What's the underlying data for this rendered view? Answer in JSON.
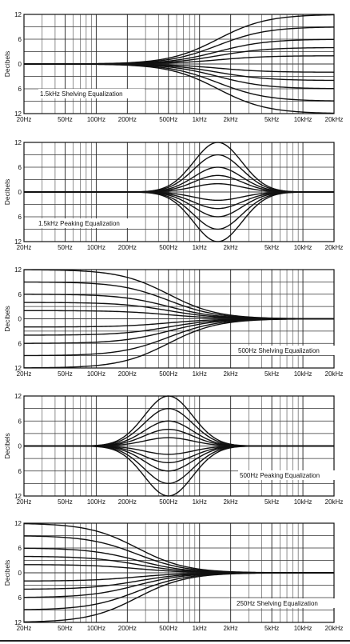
{
  "chart_data": [
    {
      "type": "line",
      "title": "1.5kHz Shelving Equalization",
      "ylabel": "Decibels",
      "ylim": [
        -12,
        12
      ],
      "yticks": [
        {
          "v": 12,
          "label": "12"
        },
        {
          "v": 6,
          "label": "6"
        },
        {
          "v": 0,
          "label": "0"
        },
        {
          "v": -6,
          "label": "6"
        },
        {
          "v": -12,
          "label": "12"
        }
      ],
      "xscale": "log",
      "xticks": [
        {
          "f": 20,
          "label": "20Hz"
        },
        {
          "f": 50,
          "label": "50Hz"
        },
        {
          "f": 100,
          "label": "100Hz"
        },
        {
          "f": 200,
          "label": "200Hz"
        },
        {
          "f": 500,
          "label": "500Hz"
        },
        {
          "f": 1000,
          "label": "1kHz"
        },
        {
          "f": 2000,
          "label": "2kHz"
        },
        {
          "f": 5000,
          "label": "5kHz"
        },
        {
          "f": 10000,
          "label": "10kHz"
        },
        {
          "f": 20000,
          "label": "20kHz"
        }
      ],
      "curve_kind": "shelf-high",
      "center_hz": 1500,
      "series_gains_db": [
        12,
        9,
        6,
        4,
        2,
        -2,
        -4,
        -6,
        -9,
        -12
      ]
    },
    {
      "type": "line",
      "title": "1.5kHz Peaking Equalization",
      "ylabel": "Decibels",
      "ylim": [
        -12,
        12
      ],
      "yticks": [
        {
          "v": 12,
          "label": "12"
        },
        {
          "v": 6,
          "label": "6"
        },
        {
          "v": 0,
          "label": "0"
        },
        {
          "v": -6,
          "label": "6"
        },
        {
          "v": -12,
          "label": "12"
        }
      ],
      "xscale": "log",
      "xticks": [
        {
          "f": 20,
          "label": "20Hz"
        },
        {
          "f": 50,
          "label": "50Hz"
        },
        {
          "f": 100,
          "label": "100Hz"
        },
        {
          "f": 200,
          "label": "200Hz"
        },
        {
          "f": 500,
          "label": "500Hz"
        },
        {
          "f": 1000,
          "label": "1kHz"
        },
        {
          "f": 2000,
          "label": "2kHz"
        },
        {
          "f": 5000,
          "label": "5kHz"
        },
        {
          "f": 10000,
          "label": "10kHz"
        },
        {
          "f": 20000,
          "label": "20kHz"
        }
      ],
      "curve_kind": "peak",
      "center_hz": 1500,
      "series_gains_db": [
        12,
        9,
        6,
        4,
        2,
        -2,
        -4,
        -6,
        -9,
        -12
      ]
    },
    {
      "type": "line",
      "title": "500Hz Shelving Equalization",
      "ylabel": "Decibels",
      "ylim": [
        -12,
        12
      ],
      "yticks": [
        {
          "v": 12,
          "label": "12"
        },
        {
          "v": 6,
          "label": "6"
        },
        {
          "v": 0,
          "label": "0"
        },
        {
          "v": -6,
          "label": "6"
        },
        {
          "v": -12,
          "label": "12"
        }
      ],
      "xscale": "log",
      "xticks": [
        {
          "f": 20,
          "label": "20Hz"
        },
        {
          "f": 50,
          "label": "50Hz"
        },
        {
          "f": 100,
          "label": "100Hz"
        },
        {
          "f": 200,
          "label": "200Hz"
        },
        {
          "f": 500,
          "label": "500Hz"
        },
        {
          "f": 1000,
          "label": "1kHz"
        },
        {
          "f": 2000,
          "label": "2kHz"
        },
        {
          "f": 5000,
          "label": "5kHz"
        },
        {
          "f": 10000,
          "label": "10kHz"
        },
        {
          "f": 20000,
          "label": "20kHz"
        }
      ],
      "curve_kind": "shelf-low",
      "center_hz": 500,
      "series_gains_db": [
        12,
        9,
        6,
        4,
        2,
        -2,
        -4,
        -6,
        -9,
        -12
      ]
    },
    {
      "type": "line",
      "title": "500Hz Peaking Equalization",
      "ylabel": "Decibels",
      "ylim": [
        -12,
        12
      ],
      "yticks": [
        {
          "v": 12,
          "label": "12"
        },
        {
          "v": 6,
          "label": "6"
        },
        {
          "v": 0,
          "label": "0"
        },
        {
          "v": -6,
          "label": "6"
        },
        {
          "v": -12,
          "label": "12"
        }
      ],
      "xscale": "log",
      "xticks": [
        {
          "f": 20,
          "label": "20Hz"
        },
        {
          "f": 50,
          "label": "50Hz"
        },
        {
          "f": 100,
          "label": "100Hz"
        },
        {
          "f": 200,
          "label": "200Hz"
        },
        {
          "f": 500,
          "label": "500Hz"
        },
        {
          "f": 1000,
          "label": "1kHz"
        },
        {
          "f": 2000,
          "label": "2kHz"
        },
        {
          "f": 5000,
          "label": "5kHz"
        },
        {
          "f": 10000,
          "label": "10kHz"
        },
        {
          "f": 20000,
          "label": "20kHz"
        }
      ],
      "curve_kind": "peak",
      "center_hz": 500,
      "series_gains_db": [
        12,
        9,
        6,
        4,
        2,
        -2,
        -4,
        -6,
        -9,
        -12
      ]
    },
    {
      "type": "line",
      "title": "250Hz Shelving Equalization",
      "ylabel": "Decibels",
      "ylim": [
        -12,
        12
      ],
      "yticks": [
        {
          "v": 12,
          "label": "12"
        },
        {
          "v": 6,
          "label": "6"
        },
        {
          "v": 0,
          "label": "0"
        },
        {
          "v": -6,
          "label": "6"
        },
        {
          "v": -12,
          "label": "12"
        }
      ],
      "xscale": "log",
      "xticks": [
        {
          "f": 20,
          "label": "20Hz"
        },
        {
          "f": 50,
          "label": "50Hz"
        },
        {
          "f": 100,
          "label": "100Hz"
        },
        {
          "f": 200,
          "label": "200Hz"
        },
        {
          "f": 500,
          "label": "500Hz"
        },
        {
          "f": 1000,
          "label": "1kHz"
        },
        {
          "f": 2000,
          "label": "2kHz"
        },
        {
          "f": 5000,
          "label": "5kHz"
        },
        {
          "f": 10000,
          "label": "10kHz"
        },
        {
          "f": 20000,
          "label": "20kHz"
        }
      ],
      "curve_kind": "shelf-low",
      "center_hz": 250,
      "series_gains_db": [
        12,
        9,
        6,
        4,
        2,
        -2,
        -4,
        -6,
        -9,
        -12
      ]
    }
  ]
}
